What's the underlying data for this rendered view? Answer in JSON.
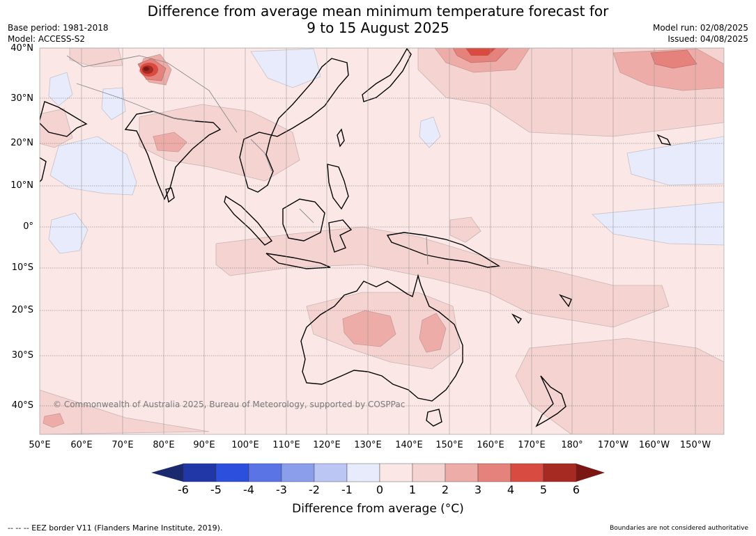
{
  "title_line1": "Difference from average mean minimum temperature forecast for",
  "title_line2": "9 to 15 August 2025",
  "base_period": "Base period: 1981-2018",
  "model": "Model: ACCESS-S2",
  "model_run": "Model run: 02/08/2025",
  "issued": "Issued: 04/08/2025",
  "lat_labels": [
    "40°N",
    "30°N",
    "20°N",
    "10°N",
    "0°",
    "10°S",
    "20°S",
    "30°S",
    "40°S"
  ],
  "lon_labels": [
    "50°E",
    "60°E",
    "70°E",
    "80°E",
    "90°E",
    "100°E",
    "110°E",
    "120°E",
    "130°E",
    "140°E",
    "150°E",
    "160°E",
    "170°E",
    "180°",
    "170°W",
    "160°W",
    "150°W"
  ],
  "copyright": "© Commonwealth of Australia 2025, Bureau of Meteorology, supported by COSPPac",
  "colorbar": {
    "ticks": [
      "-6",
      "-5",
      "-4",
      "-3",
      "-2",
      "-1",
      "0",
      "1",
      "2",
      "3",
      "4",
      "5",
      "6"
    ],
    "title": "Difference from average (°C)",
    "colors": [
      "#1b2a6e",
      "#2137a8",
      "#2d4fdd",
      "#5a74e6",
      "#8a9eec",
      "#bcc6f4",
      "#e7ebfb",
      "#fbe8e6",
      "#f5d3d0",
      "#eeaca8",
      "#e6827c",
      "#d84b40",
      "#a62a22",
      "#7a1712"
    ]
  },
  "footer_left": "--  --  -- EEZ border V11 (Flanders Marine Institute, 2019).",
  "footer_right": "Boundaries are not considered authoritative",
  "anomaly_features": [
    {
      "region": "Western Himalaya / Kashmir",
      "anomaly_c": "3 to 6"
    },
    {
      "region": "Central Australia",
      "anomaly_c": "2 to 3"
    },
    {
      "region": "North-western Pacific",
      "anomaly_c": "3 to 4"
    },
    {
      "region": "Arabian Sea",
      "anomaly_c": "-1 to 0"
    },
    {
      "region": "Central Pacific near equator",
      "anomaly_c": "-1 to 0"
    }
  ]
}
